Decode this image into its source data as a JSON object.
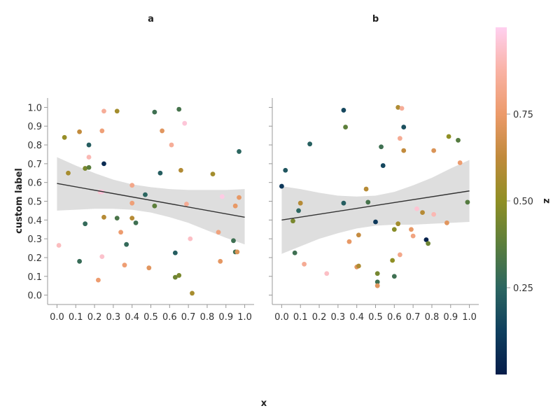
{
  "chart_data": {
    "type": "scatter",
    "xlabel": "x",
    "ylabel": "custom label",
    "xlim": [
      -0.05,
      1.05
    ],
    "ylim": [
      -0.05,
      1.05
    ],
    "xticks": [
      0.0,
      0.1,
      0.2,
      0.3,
      0.4,
      0.5,
      0.6,
      0.7,
      0.8,
      0.9,
      1.0
    ],
    "yticks": [
      0.0,
      0.1,
      0.2,
      0.3,
      0.4,
      0.5,
      0.6,
      0.7,
      0.8,
      0.9,
      1.0
    ],
    "colorbar": {
      "label": "z",
      "range": [
        0.0,
        1.0
      ],
      "ticks": [
        0.25,
        0.5,
        0.75
      ],
      "tick_labels": [
        "0.25",
        "0.50",
        "0.75"
      ],
      "colormap": "batlow-like",
      "stops": [
        "#061d4a",
        "#0f3f5e",
        "#2c6660",
        "#5b7e3c",
        "#8f8f24",
        "#c08a3b",
        "#ec9a6a",
        "#f9b2a4",
        "#ffd0f0"
      ]
    },
    "regression": {
      "line_color": "#333333",
      "band_color": "#dcdcdc"
    },
    "facets": [
      {
        "title": "a",
        "trend": {
          "x": [
            0.0,
            1.0
          ],
          "y": [
            0.595,
            0.415
          ]
        },
        "band_x": [
          0.0,
          0.1,
          0.2,
          0.3,
          0.4,
          0.5,
          0.6,
          0.7,
          0.8,
          0.9,
          1.0
        ],
        "band_upper": [
          0.735,
          0.69,
          0.65,
          0.615,
          0.59,
          0.575,
          0.565,
          0.56,
          0.56,
          0.56,
          0.565
        ],
        "band_lower": [
          0.45,
          0.455,
          0.46,
          0.46,
          0.455,
          0.44,
          0.415,
          0.385,
          0.345,
          0.305,
          0.27
        ],
        "points": [
          [
            0.01,
            0.265,
            0.92
          ],
          [
            0.04,
            0.84,
            0.52
          ],
          [
            0.06,
            0.65,
            0.56
          ],
          [
            0.12,
            0.87,
            0.63
          ],
          [
            0.12,
            0.18,
            0.28
          ],
          [
            0.15,
            0.675,
            0.45
          ],
          [
            0.15,
            0.38,
            0.27
          ],
          [
            0.17,
            0.735,
            0.9
          ],
          [
            0.17,
            0.68,
            0.37
          ],
          [
            0.17,
            0.8,
            0.22
          ],
          [
            0.22,
            0.08,
            0.76
          ],
          [
            0.23,
            0.55,
            0.95
          ],
          [
            0.24,
            0.875,
            0.78
          ],
          [
            0.24,
            0.205,
            0.94
          ],
          [
            0.24,
            0.55,
            0.97
          ],
          [
            0.25,
            0.7,
            0.05
          ],
          [
            0.25,
            0.98,
            0.85
          ],
          [
            0.25,
            0.415,
            0.6
          ],
          [
            0.32,
            0.98,
            0.55
          ],
          [
            0.32,
            0.41,
            0.33
          ],
          [
            0.34,
            0.335,
            0.76
          ],
          [
            0.36,
            0.16,
            0.77
          ],
          [
            0.37,
            0.27,
            0.27
          ],
          [
            0.4,
            0.585,
            0.82
          ],
          [
            0.4,
            0.49,
            0.78
          ],
          [
            0.4,
            0.41,
            0.6
          ],
          [
            0.42,
            0.385,
            0.3
          ],
          [
            0.47,
            0.535,
            0.25
          ],
          [
            0.49,
            0.145,
            0.72
          ],
          [
            0.52,
            0.975,
            0.3
          ],
          [
            0.52,
            0.475,
            0.38
          ],
          [
            0.55,
            0.65,
            0.22
          ],
          [
            0.56,
            0.875,
            0.72
          ],
          [
            0.61,
            0.8,
            0.85
          ],
          [
            0.63,
            0.225,
            0.22
          ],
          [
            0.63,
            0.095,
            0.42
          ],
          [
            0.65,
            0.105,
            0.45
          ],
          [
            0.65,
            0.99,
            0.32
          ],
          [
            0.66,
            0.665,
            0.59
          ],
          [
            0.68,
            0.915,
            0.96
          ],
          [
            0.69,
            0.485,
            0.84
          ],
          [
            0.71,
            0.3,
            0.93
          ],
          [
            0.72,
            0.01,
            0.56
          ],
          [
            0.83,
            0.645,
            0.55
          ],
          [
            0.86,
            0.335,
            0.79
          ],
          [
            0.87,
            0.18,
            0.73
          ],
          [
            0.88,
            0.525,
            0.98
          ],
          [
            0.94,
            0.29,
            0.3
          ],
          [
            0.95,
            0.23,
            0.3
          ],
          [
            0.95,
            0.475,
            0.74
          ],
          [
            0.96,
            0.23,
            0.7
          ],
          [
            0.97,
            0.765,
            0.25
          ],
          [
            0.97,
            0.52,
            0.74
          ]
        ]
      },
      {
        "title": "b",
        "trend": {
          "x": [
            0.0,
            1.0
          ],
          "y": [
            0.4,
            0.555
          ]
        },
        "band_x": [
          0.0,
          0.1,
          0.2,
          0.3,
          0.4,
          0.5,
          0.6,
          0.7,
          0.8,
          0.9,
          1.0
        ],
        "band_upper": [
          0.58,
          0.565,
          0.545,
          0.53,
          0.525,
          0.53,
          0.55,
          0.585,
          0.625,
          0.675,
          0.72
        ],
        "band_lower": [
          0.22,
          0.26,
          0.3,
          0.33,
          0.355,
          0.37,
          0.375,
          0.375,
          0.38,
          0.385,
          0.39
        ],
        "points": [
          [
            0.0,
            0.58,
            0.1
          ],
          [
            0.02,
            0.665,
            0.2
          ],
          [
            0.06,
            0.395,
            0.45
          ],
          [
            0.07,
            0.225,
            0.3
          ],
          [
            0.09,
            0.45,
            0.25
          ],
          [
            0.1,
            0.49,
            0.6
          ],
          [
            0.12,
            0.165,
            0.84
          ],
          [
            0.15,
            0.805,
            0.23
          ],
          [
            0.24,
            0.115,
            0.93
          ],
          [
            0.33,
            0.985,
            0.15
          ],
          [
            0.33,
            0.49,
            0.22
          ],
          [
            0.34,
            0.895,
            0.38
          ],
          [
            0.36,
            0.285,
            0.74
          ],
          [
            0.4,
            0.15,
            0.72
          ],
          [
            0.41,
            0.155,
            0.58
          ],
          [
            0.41,
            0.32,
            0.64
          ],
          [
            0.45,
            0.565,
            0.6
          ],
          [
            0.46,
            0.495,
            0.32
          ],
          [
            0.5,
            0.39,
            0.1
          ],
          [
            0.51,
            0.07,
            0.3
          ],
          [
            0.51,
            0.115,
            0.44
          ],
          [
            0.51,
            0.05,
            0.72
          ],
          [
            0.53,
            0.79,
            0.3
          ],
          [
            0.54,
            0.69,
            0.15
          ],
          [
            0.59,
            0.185,
            0.5
          ],
          [
            0.6,
            0.1,
            0.3
          ],
          [
            0.6,
            0.35,
            0.48
          ],
          [
            0.62,
            1.0,
            0.58
          ],
          [
            0.62,
            0.38,
            0.55
          ],
          [
            0.63,
            0.215,
            0.82
          ],
          [
            0.63,
            0.835,
            0.84
          ],
          [
            0.64,
            0.995,
            0.85
          ],
          [
            0.65,
            0.895,
            0.18
          ],
          [
            0.65,
            0.77,
            0.63
          ],
          [
            0.69,
            0.35,
            0.74
          ],
          [
            0.7,
            0.315,
            0.8
          ],
          [
            0.72,
            0.46,
            0.95
          ],
          [
            0.75,
            0.44,
            0.6
          ],
          [
            0.77,
            0.295,
            0.02
          ],
          [
            0.78,
            0.275,
            0.42
          ],
          [
            0.81,
            0.77,
            0.7
          ],
          [
            0.81,
            0.43,
            0.9
          ],
          [
            0.88,
            0.385,
            0.72
          ],
          [
            0.89,
            0.845,
            0.5
          ],
          [
            0.94,
            0.825,
            0.36
          ],
          [
            0.95,
            0.705,
            0.76
          ],
          [
            0.99,
            0.495,
            0.36
          ]
        ]
      }
    ]
  }
}
